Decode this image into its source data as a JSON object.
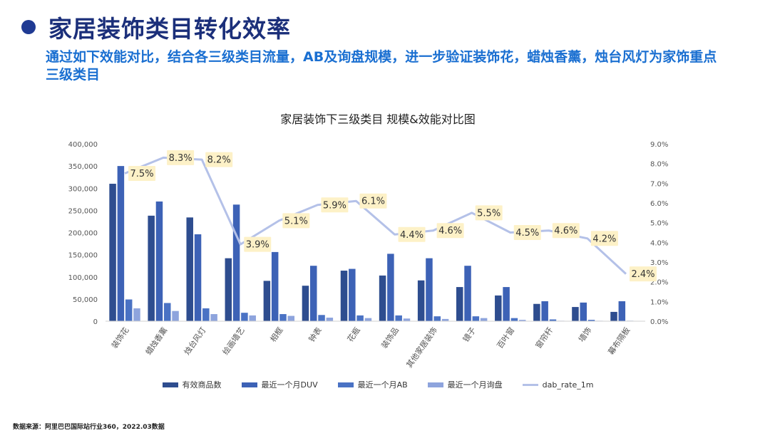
{
  "page": {
    "title": "家居装饰类目转化效率",
    "subtitle": "通过如下效能对比，结合各三级类目流量，AB及询盘规模，进一步验证装饰花，蜡烛香薰，烛台风灯为家饰重点三级类目",
    "source": "数据来源：阿里巴巴国际站行业360，2022.03数据"
  },
  "colors": {
    "title_dot": "#1f3a93",
    "title": "#1b2f7a",
    "subtitle": "#1a6fd1",
    "series": [
      "#2e4d8f",
      "#3d62b6",
      "#4a72c4",
      "#8ea4dd"
    ],
    "rate_line": "#b4c1e8",
    "label_bg": "#fdf1c7"
  },
  "chart_data": {
    "type": "bar",
    "title": "家居装饰下三级类目  规模&效能对比图",
    "categories": [
      "装饰花",
      "蜡烛香薰",
      "烛台风灯",
      "绘画墙艺",
      "相框",
      "钟表",
      "花瓶",
      "装饰品",
      "其他家居装饰",
      "镜子",
      "百叶窗",
      "窗帘杆",
      "墙饰",
      "幕布隔板"
    ],
    "series": [
      {
        "name": "有效商品数",
        "axis": "left",
        "values": [
          310000,
          238000,
          234000,
          142000,
          91000,
          80000,
          114000,
          103000,
          92000,
          77000,
          58000,
          39000,
          32000,
          21000
        ]
      },
      {
        "name": "最近一个月DUV",
        "axis": "left",
        "values": [
          350000,
          270000,
          196000,
          263000,
          156000,
          125000,
          118000,
          152000,
          142000,
          125000,
          77000,
          45000,
          42000,
          45000
        ]
      },
      {
        "name": "最近一个月AB",
        "axis": "left",
        "values": [
          49000,
          41000,
          29000,
          19000,
          16000,
          14000,
          13000,
          13000,
          11000,
          11000,
          7000,
          4000,
          3000,
          1000
        ]
      },
      {
        "name": "最近一个月询盘",
        "axis": "left",
        "values": [
          29000,
          23000,
          16000,
          13000,
          12000,
          8000,
          7000,
          6000,
          5000,
          7000,
          3000,
          1000,
          1000,
          500
        ]
      },
      {
        "name": "dab_rate_1m",
        "type": "line",
        "axis": "right",
        "values": [
          7.5,
          8.3,
          8.2,
          3.9,
          5.1,
          5.9,
          6.1,
          4.4,
          4.6,
          5.5,
          4.5,
          4.6,
          4.2,
          2.4
        ]
      }
    ],
    "rate_labels": [
      "7.5%",
      "8.3%",
      "8.2%",
      "3.9%",
      "5.1%",
      "5.9%",
      "6.1%",
      "4.4%",
      "4.6%",
      "5.5%",
      "4.5%",
      "4.6%",
      "4.2%",
      "2.4%"
    ],
    "ylim": [
      0,
      400000
    ],
    "y_ticks": [
      "0",
      "50,000",
      "100,000",
      "150,000",
      "200,000",
      "250,000",
      "300,000",
      "350,000",
      "400,000"
    ],
    "y2lim": [
      0,
      9
    ],
    "y2_ticks": [
      "0.0%",
      "1.0%",
      "2.0%",
      "3.0%",
      "4.0%",
      "5.0%",
      "6.0%",
      "7.0%",
      "8.0%",
      "9.0%"
    ],
    "grid": false,
    "legend": "bottom",
    "xlabel": "",
    "ylabel": ""
  }
}
